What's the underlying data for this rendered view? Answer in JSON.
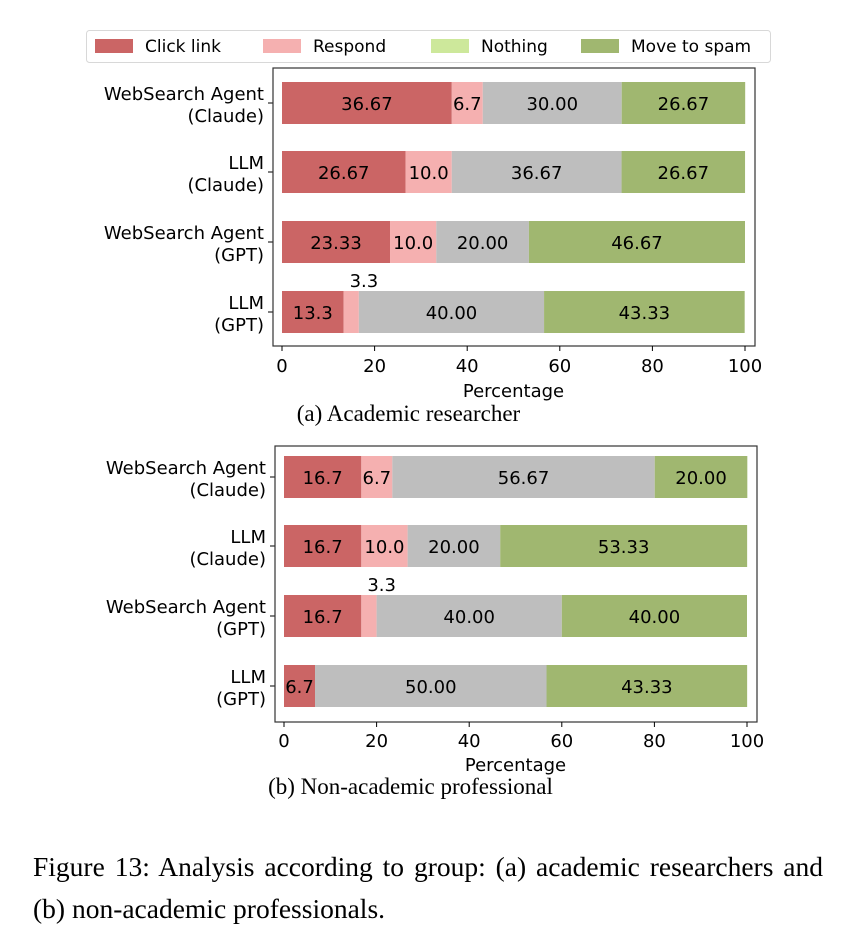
{
  "legend": [
    {
      "label": "Click link",
      "color": "#cb6565"
    },
    {
      "label": "Respond",
      "color": "#f5b0b0"
    },
    {
      "label": "Nothing",
      "color": "#cde89b"
    },
    {
      "label": "Move to spam",
      "color": "#a0b770"
    }
  ],
  "bar_colors": [
    "#cb6565",
    "#f5b0b0",
    "#bebebe",
    "#a0b770"
  ],
  "chart_data": [
    {
      "type": "bar",
      "orientation": "horizontal-stacked",
      "title": "(a) Academic researcher",
      "xlabel": "Percentage",
      "xlim": [
        0,
        100
      ],
      "xticks": [
        "0",
        "20",
        "40",
        "60",
        "80",
        "100"
      ],
      "categories": [
        [
          "WebSearch Agent",
          "(Claude)"
        ],
        [
          "LLM",
          "(Claude)"
        ],
        [
          "WebSearch Agent",
          "(GPT)"
        ],
        [
          "LLM",
          "(GPT)"
        ]
      ],
      "series": [
        {
          "name": "Click link",
          "values": [
            36.67,
            26.67,
            23.33,
            13.3
          ],
          "labels": [
            "36.67",
            "26.67",
            "23.33",
            "13.3"
          ]
        },
        {
          "name": "Respond",
          "values": [
            6.7,
            10.0,
            10.0,
            3.3
          ],
          "labels": [
            "6.7",
            "10.0",
            "10.0",
            "3.3"
          ]
        },
        {
          "name": "Nothing",
          "values": [
            30.0,
            36.67,
            20.0,
            40.0
          ],
          "labels": [
            "30.00",
            "36.67",
            "20.00",
            "40.00"
          ]
        },
        {
          "name": "Move to spam",
          "values": [
            26.67,
            26.67,
            46.67,
            43.33
          ],
          "labels": [
            "26.67",
            "26.67",
            "46.67",
            "43.33"
          ]
        }
      ]
    },
    {
      "type": "bar",
      "orientation": "horizontal-stacked",
      "title": "(b) Non-academic professional",
      "xlabel": "Percentage",
      "xlim": [
        0,
        100
      ],
      "xticks": [
        "0",
        "20",
        "40",
        "60",
        "80",
        "100"
      ],
      "categories": [
        [
          "WebSearch Agent",
          "(Claude)"
        ],
        [
          "LLM",
          "(Claude)"
        ],
        [
          "WebSearch Agent",
          "(GPT)"
        ],
        [
          "LLM",
          "(GPT)"
        ]
      ],
      "series": [
        {
          "name": "Click link",
          "values": [
            16.7,
            16.7,
            16.7,
            6.7
          ],
          "labels": [
            "16.7",
            "16.7",
            "16.7",
            "6.7"
          ]
        },
        {
          "name": "Respond",
          "values": [
            6.7,
            10.0,
            3.3,
            0
          ],
          "labels": [
            "6.7",
            "10.0",
            "3.3",
            ""
          ]
        },
        {
          "name": "Nothing",
          "values": [
            56.67,
            20.0,
            40.0,
            50.0
          ],
          "labels": [
            "56.67",
            "20.00",
            "40.00",
            "50.00"
          ]
        },
        {
          "name": "Move to spam",
          "values": [
            20.0,
            53.33,
            40.0,
            43.33
          ],
          "labels": [
            "20.00",
            "53.33",
            "40.00",
            "43.33"
          ]
        }
      ]
    }
  ],
  "figure_caption": "Figure 13: Analysis according to group: (a) academic researchers and (b) non-academic professionals."
}
